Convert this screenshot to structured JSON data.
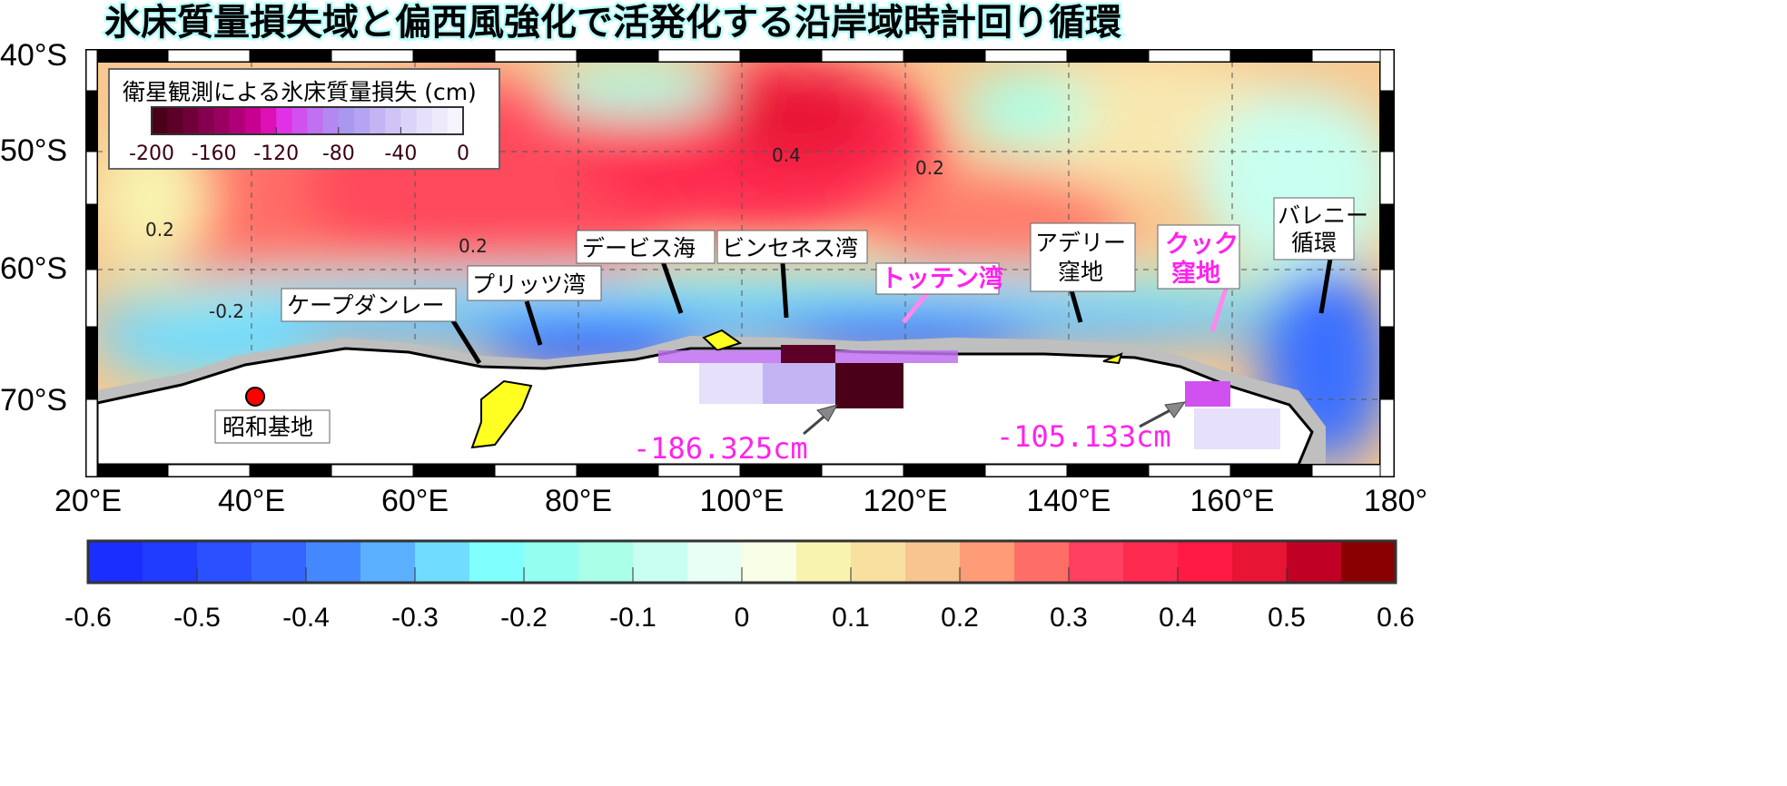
{
  "title": "氷床質量損失域と偏西風強化で活発化する沿岸域時計回り循環",
  "lat_ticks": [
    "40°S",
    "50°S",
    "60°S",
    "70°S"
  ],
  "lon_ticks": [
    "20°E",
    "40°E",
    "60°E",
    "80°E",
    "100°E",
    "120°E",
    "140°E",
    "160°E",
    "180°"
  ],
  "ice_loss_legend": {
    "title": "衛星観測による氷床質量損失 (cm)",
    "ticks": [
      "-200",
      "-160",
      "-120",
      "-80",
      "-40",
      "0"
    ],
    "range": [
      -200,
      0
    ],
    "colors": [
      "#4a0018",
      "#5c0028",
      "#700038",
      "#860050",
      "#990060",
      "#b00078",
      "#c80090",
      "#dc10b4",
      "#e030e8",
      "#d050f0",
      "#c070f0",
      "#b488f0",
      "#a898f0",
      "#b4a4f2",
      "#c4b4f4",
      "#d0c4f6",
      "#dcd4f8",
      "#e6e0fa",
      "#eeeafc",
      "#f6f4fe"
    ]
  },
  "contour_labels": [
    "0.4",
    "0.2",
    "0.2",
    "0.2",
    "-0.2"
  ],
  "callouts": {
    "cape_darnley": "ケープダンレー",
    "prydz_bay": "プリッツ湾",
    "davis_sea": "デービス海",
    "vincennes_bay": "ビンセネス湾",
    "totten_bay": "トッテン湾",
    "adelie_1": "アデリー",
    "adelie_2": "窪地",
    "cook_1": "クック",
    "cook_2": "窪地",
    "balleny_1": "バレニー",
    "balleny_2": "循環",
    "syowa": "昭和基地"
  },
  "loss_values": [
    "-186.325cm",
    "-105.133cm"
  ],
  "colorbar": {
    "range": [
      -0.6,
      0.6
    ],
    "ticks": [
      "-0.6",
      "-0.5",
      "-0.4",
      "-0.3",
      "-0.2",
      "-0.1",
      "0",
      "0.1",
      "0.2",
      "0.3",
      "0.4",
      "0.5",
      "0.6"
    ],
    "colors": [
      "#1a2eff",
      "#1f3cff",
      "#2a50ff",
      "#3366ff",
      "#4488ff",
      "#5ab0ff",
      "#70dcff",
      "#80ffff",
      "#94fff0",
      "#aaffe8",
      "#c8fff0",
      "#e8fff6",
      "#f8ffe6",
      "#f8f4b0",
      "#f8e0a0",
      "#f8c490",
      "#ff9c78",
      "#ff6e66",
      "#ff4060",
      "#ff2a50",
      "#ff1a44",
      "#e81434",
      "#c00024",
      "#8a0000"
    ]
  },
  "colors": {
    "highlight": "#ff22ee",
    "syowa_marker": "#ff0000",
    "ice_shelf": "#bfbfbf",
    "ice_loss_patch": "#ffff22"
  }
}
